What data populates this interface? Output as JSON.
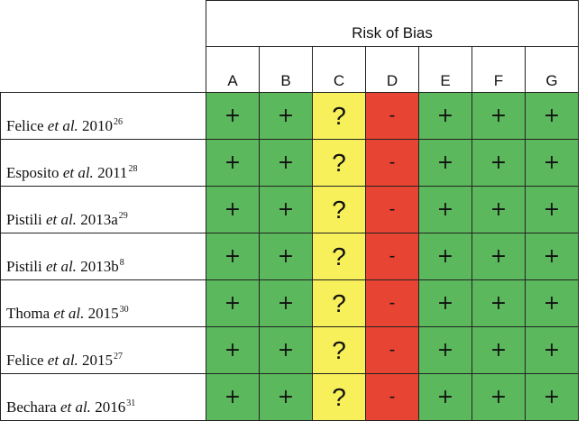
{
  "header": {
    "title": "Risk of Bias"
  },
  "columns": [
    "A",
    "B",
    "C",
    "D",
    "E",
    "F",
    "G"
  ],
  "colors": {
    "low": "#5cb85c",
    "unclear": "#f7f05a",
    "high": "#e84433"
  },
  "studies": [
    {
      "author": "Felice",
      "etal": "et al.",
      "year": "2010",
      "ref": "26",
      "ratings": [
        "+",
        "+",
        "?",
        "-",
        "+",
        "+",
        "+"
      ]
    },
    {
      "author": "Esposito",
      "etal": "et al.",
      "year": "2011",
      "ref": "28",
      "ratings": [
        "+",
        "+",
        "?",
        "-",
        "+",
        "+",
        "+"
      ]
    },
    {
      "author": "Pistili",
      "etal": "et al.",
      "year": "2013a",
      "ref": "29",
      "ratings": [
        "+",
        "+",
        "?",
        "-",
        "+",
        "+",
        "+"
      ]
    },
    {
      "author": "Pistili",
      "etal": "et al.",
      "year": "2013b",
      "ref": "8",
      "ratings": [
        "+",
        "+",
        "?",
        "-",
        "+",
        "+",
        "+"
      ]
    },
    {
      "author": "Thoma",
      "etal": "et al.",
      "year": "2015",
      "ref": "30",
      "ratings": [
        "+",
        "+",
        "?",
        "-",
        "+",
        "+",
        "+"
      ]
    },
    {
      "author": "Felice",
      "etal": "et al.",
      "year": "2015",
      "ref": "27",
      "ratings": [
        "+",
        "+",
        "?",
        "-",
        "+",
        "+",
        "+"
      ]
    },
    {
      "author": "Bechara",
      "etal": "et al.",
      "year": "2016",
      "ref": "31",
      "ratings": [
        "+",
        "+",
        "?",
        "-",
        "+",
        "+",
        "+"
      ]
    }
  ]
}
